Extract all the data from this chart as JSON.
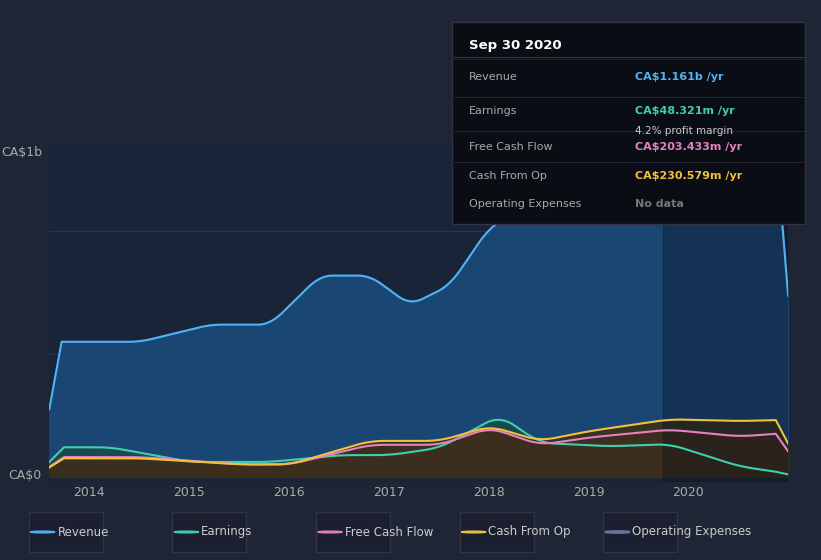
{
  "bg_color": "#1e2535",
  "chart_bg": "#1a2236",
  "plot_bg": "#1a2438",
  "title": "Sep 30 2020",
  "ylabel_top": "CA$1b",
  "ylabel_bottom": "CA$0",
  "x_ticks": [
    2014,
    2015,
    2016,
    2017,
    2018,
    2019,
    2020
  ],
  "tooltip": {
    "title": "Sep 30 2020",
    "rows": [
      {
        "label": "Revenue",
        "value": "CA$1.161b /yr",
        "value_color": "#4fb3f5"
      },
      {
        "label": "Earnings",
        "value": "CA$48.321m /yr",
        "value_color": "#3ecfb2",
        "sub": "4.2% profit margin"
      },
      {
        "label": "Free Cash Flow",
        "value": "CA$203.433m /yr",
        "value_color": "#e87fc0"
      },
      {
        "label": "Cash From Op",
        "value": "CA$230.579m /yr",
        "value_color": "#f0c040"
      },
      {
        "label": "Operating Expenses",
        "value": "No data",
        "value_color": "#888888"
      }
    ]
  },
  "legend": [
    {
      "label": "Revenue",
      "color": "#4fb3f5",
      "marker": "o"
    },
    {
      "label": "Earnings",
      "color": "#3ecfb2",
      "marker": "o"
    },
    {
      "label": "Free Cash Flow",
      "color": "#e87fc0",
      "marker": "o"
    },
    {
      "label": "Cash From Op",
      "color": "#f0c040",
      "marker": "o"
    },
    {
      "label": "Operating Expenses",
      "color": "#7070a0",
      "marker": "o",
      "filled": false
    }
  ],
  "revenue_color": "#4fb3f5",
  "earnings_color": "#3ecfb2",
  "fcf_color": "#e87fc0",
  "cashfromop_color": "#f0c040",
  "opex_color": "#7070a0",
  "revenue_fill": "#1a4a7a",
  "earnings_fill": "#1a5a4a",
  "fcf_fill": "#5a2050",
  "cashfromop_fill": "#4a3a10",
  "dark_bg": "#12192a"
}
